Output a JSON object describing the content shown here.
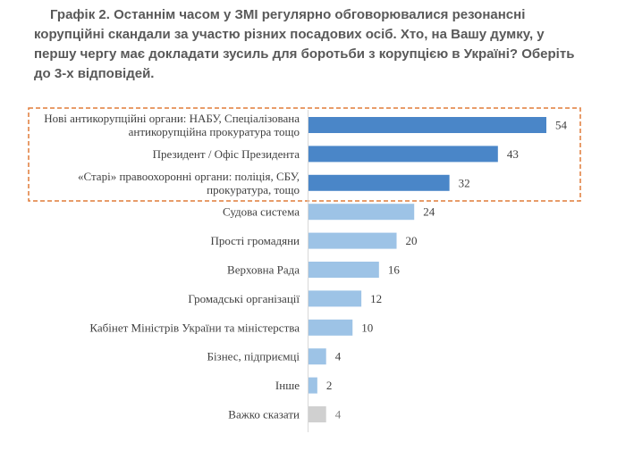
{
  "title": "Графік 2. Останнім часом у ЗМІ регулярно обговорювалися резонансні корупційні скандали за участю різних посадових осіб. Хто, на Вашу думку, у першу чергу має докладати зусиль для боротьби з корупцією в Україні? Оберіть до 3-х відповідей.",
  "colors": {
    "highlight": "#4a86c8",
    "normal": "#9dc3e6",
    "neutral": "#d0d0d0",
    "frame": "#e07b39"
  },
  "chart_data": {
    "type": "bar",
    "orientation": "horizontal",
    "title": "Графік 2. Останнім часом у ЗМІ регулярно обговорювалися резонансні корупційні скандали за участю різних посадових осіб. Хто, на Вашу думку, у першу чергу має докладати зусиль для боротьби з корупцією в Україні? Оберіть до 3-х відповідей.",
    "categories": [
      [
        "Нові антикорупційні органи: НАБУ, Спеціалізована",
        "антикорупційна прокуратура тощо"
      ],
      [
        "Президент / Офіс Президента"
      ],
      [
        "«Старі» правоохоронні  органи: поліція, СБУ,",
        "прокуратура, тощо"
      ],
      [
        "Судова система"
      ],
      [
        "Прості громадяни"
      ],
      [
        "Верховна Рада"
      ],
      [
        "Громадські організації"
      ],
      [
        "Кабінет Міністрів України та міністерства"
      ],
      [
        "Бізнес, підприємці"
      ],
      [
        "Інше"
      ],
      [
        "Важко сказати"
      ]
    ],
    "values": [
      54,
      43,
      32,
      24,
      20,
      16,
      12,
      10,
      4,
      2,
      4
    ],
    "value_labels": [
      "54",
      "43",
      "32",
      "24",
      "20",
      "16",
      "12",
      "10",
      "4",
      "2",
      "4"
    ],
    "highlighted": [
      true,
      true,
      true,
      false,
      false,
      false,
      false,
      false,
      false,
      false,
      false
    ],
    "neutral": [
      false,
      false,
      false,
      false,
      false,
      false,
      false,
      false,
      false,
      false,
      true
    ],
    "xlim": [
      0,
      60
    ],
    "grid": false,
    "legend": "none"
  }
}
